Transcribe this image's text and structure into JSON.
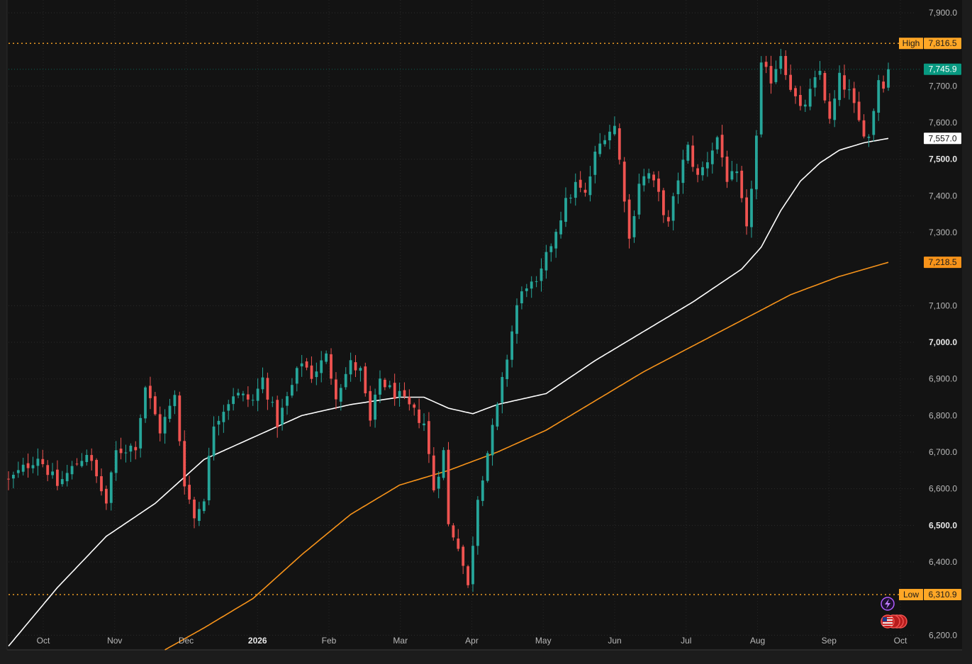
{
  "chart_data": {
    "type": "candlestick",
    "x_tick_labels": [
      "Oct",
      "Nov",
      "Dec",
      "2026",
      "Feb",
      "Mar",
      "Apr",
      "May",
      "Jun",
      "Jul",
      "Aug",
      "Sep",
      "Oct"
    ],
    "y_tick_labels": [
      "6,200.0",
      "6,400.0",
      "6,500.0",
      "6,600.0",
      "6,700.0",
      "6,800.0",
      "6,900.0",
      "7,000.0",
      "7,100.0",
      "7,300.0",
      "7,400.0",
      "7,500.0",
      "7,600.0",
      "7,700.0",
      "7,900.0"
    ],
    "bold_y_tick_labels": [
      "6,500.0",
      "7,000.0",
      "7,500.0"
    ],
    "ylim": [
      6160,
      7935
    ],
    "high": {
      "label": "High",
      "value": "7,816.5",
      "y": 7816.5
    },
    "low": {
      "label": "Low",
      "value": "6,310.9",
      "y": 6310.9
    },
    "last_price": {
      "value": "7,745.9",
      "y": 7745.9,
      "color": "#089981"
    },
    "ma_white_label": {
      "value": "7,557.0",
      "y": 7557.0
    },
    "ma_orange_label": {
      "value": "7,218.5",
      "y": 7218.5
    },
    "colors": {
      "up": "#26a69a",
      "down": "#ef5350",
      "ma_white": "#ffffff",
      "ma_orange": "#f7931a",
      "high_low": "#ffa726",
      "background": "#131313"
    },
    "icons": [
      "lightning-event-icon",
      "us-flag-event-icon"
    ],
    "close_anchors": [
      [
        0,
        6620
      ],
      [
        6,
        6690
      ],
      [
        10,
        6610
      ],
      [
        16,
        6700
      ],
      [
        20,
        6560
      ],
      [
        22,
        6700
      ],
      [
        26,
        6720
      ],
      [
        28,
        6880
      ],
      [
        31,
        6760
      ],
      [
        34,
        6850
      ],
      [
        36,
        6620
      ],
      [
        38,
        6520
      ],
      [
        40,
        6580
      ],
      [
        42,
        6780
      ],
      [
        46,
        6860
      ],
      [
        50,
        6840
      ],
      [
        52,
        6900
      ],
      [
        55,
        6780
      ],
      [
        58,
        6880
      ],
      [
        60,
        6950
      ],
      [
        62,
        6910
      ],
      [
        65,
        6960
      ],
      [
        67,
        6860
      ],
      [
        70,
        6940
      ],
      [
        72,
        6920
      ],
      [
        74,
        6780
      ],
      [
        76,
        6900
      ],
      [
        78,
        6870
      ],
      [
        80,
        6850
      ],
      [
        82,
        6820
      ],
      [
        85,
        6780
      ],
      [
        87,
        6600
      ],
      [
        89,
        6700
      ],
      [
        90,
        6500
      ],
      [
        92,
        6450
      ],
      [
        94,
        6330
      ],
      [
        96,
        6580
      ],
      [
        98,
        6700
      ],
      [
        100,
        6820
      ],
      [
        102,
        6960
      ],
      [
        104,
        7100
      ],
      [
        106,
        7160
      ],
      [
        108,
        7150
      ],
      [
        110,
        7230
      ],
      [
        112,
        7310
      ],
      [
        114,
        7380
      ],
      [
        116,
        7430
      ],
      [
        118,
        7400
      ],
      [
        120,
        7510
      ],
      [
        122,
        7570
      ],
      [
        124,
        7590
      ],
      [
        126,
        7400
      ],
      [
        127,
        7280
      ],
      [
        129,
        7440
      ],
      [
        131,
        7460
      ],
      [
        133,
        7400
      ],
      [
        135,
        7320
      ],
      [
        137,
        7450
      ],
      [
        139,
        7530
      ],
      [
        141,
        7450
      ],
      [
        143,
        7500
      ],
      [
        145,
        7560
      ],
      [
        147,
        7450
      ],
      [
        149,
        7450
      ],
      [
        150,
        7380
      ],
      [
        151,
        7300
      ],
      [
        153,
        7560
      ],
      [
        154,
        7750
      ],
      [
        156,
        7720
      ],
      [
        158,
        7790
      ],
      [
        160,
        7700
      ],
      [
        162,
        7630
      ],
      [
        164,
        7680
      ],
      [
        166,
        7740
      ],
      [
        168,
        7600
      ],
      [
        170,
        7720
      ],
      [
        172,
        7680
      ],
      [
        174,
        7600
      ],
      [
        176,
        7560
      ],
      [
        178,
        7720
      ],
      [
        179,
        7710
      ],
      [
        180,
        7745.9
      ]
    ],
    "ma_white_anchors": [
      [
        0,
        6170
      ],
      [
        10,
        6330
      ],
      [
        20,
        6470
      ],
      [
        30,
        6560
      ],
      [
        40,
        6680
      ],
      [
        50,
        6740
      ],
      [
        60,
        6800
      ],
      [
        70,
        6830
      ],
      [
        80,
        6850
      ],
      [
        85,
        6850
      ],
      [
        90,
        6820
      ],
      [
        95,
        6805
      ],
      [
        100,
        6830
      ],
      [
        110,
        6860
      ],
      [
        120,
        6950
      ],
      [
        130,
        7030
      ],
      [
        140,
        7110
      ],
      [
        150,
        7200
      ],
      [
        154,
        7260
      ],
      [
        158,
        7360
      ],
      [
        162,
        7440
      ],
      [
        166,
        7490
      ],
      [
        170,
        7525
      ],
      [
        175,
        7545
      ],
      [
        180,
        7557
      ]
    ],
    "ma_orange_anchors": [
      [
        32,
        6160
      ],
      [
        40,
        6220
      ],
      [
        50,
        6300
      ],
      [
        60,
        6420
      ],
      [
        70,
        6530
      ],
      [
        80,
        6610
      ],
      [
        90,
        6650
      ],
      [
        100,
        6700
      ],
      [
        110,
        6760
      ],
      [
        120,
        6840
      ],
      [
        130,
        6920
      ],
      [
        140,
        6990
      ],
      [
        150,
        7060
      ],
      [
        160,
        7130
      ],
      [
        170,
        7180
      ],
      [
        180,
        7218.5
      ]
    ]
  }
}
